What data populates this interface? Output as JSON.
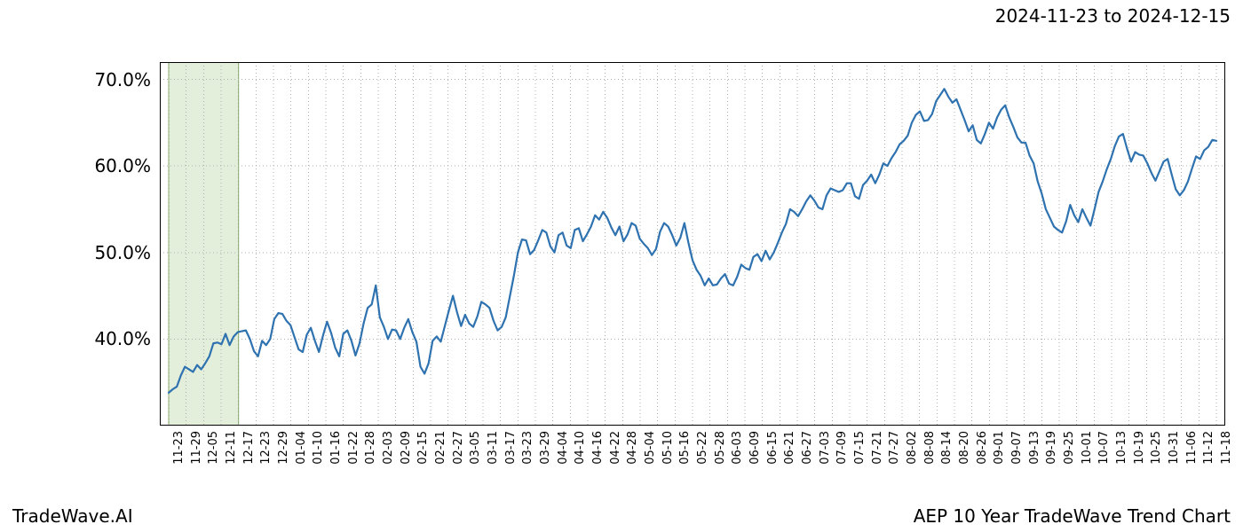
{
  "header": {
    "date_range": "2024-11-23 to 2024-12-15"
  },
  "footer": {
    "left": "TradeWave.AI",
    "right": "AEP 10 Year TradeWave Trend Chart"
  },
  "chart": {
    "type": "line",
    "background_color": "#ffffff",
    "grid_color": "#b0b0b0",
    "grid_dash": "1 3",
    "border_color": "#000000",
    "series_color": "#2f72b0",
    "series_line_width": 2.2,
    "highlight_band": {
      "fill": "#e3efdb",
      "stroke": "#78a65a",
      "x_start_label": "11-23",
      "x_end_label": "12-17"
    },
    "ylim": [
      30,
      72
    ],
    "ytick_values": [
      40,
      50,
      60,
      70
    ],
    "ytick_labels": [
      "40.0%",
      "50.0%",
      "60.0%",
      "70.0%"
    ],
    "label_fontsize": 20,
    "xtick_fontsize": 13,
    "xlabels": [
      "11-23",
      "11-29",
      "12-05",
      "12-11",
      "12-17",
      "12-23",
      "12-29",
      "01-04",
      "01-10",
      "01-16",
      "01-22",
      "01-28",
      "02-03",
      "02-09",
      "02-15",
      "02-21",
      "02-27",
      "03-05",
      "03-11",
      "03-17",
      "03-23",
      "03-29",
      "04-04",
      "04-10",
      "04-16",
      "04-22",
      "04-28",
      "05-04",
      "05-10",
      "05-16",
      "05-22",
      "05-28",
      "06-03",
      "06-09",
      "06-15",
      "06-21",
      "06-27",
      "07-03",
      "07-09",
      "07-15",
      "07-21",
      "07-27",
      "08-02",
      "08-08",
      "08-14",
      "08-20",
      "08-26",
      "09-01",
      "09-07",
      "09-13",
      "09-19",
      "09-25",
      "10-01",
      "10-07",
      "10-13",
      "10-19",
      "10-25",
      "10-31",
      "11-06",
      "11-12",
      "11-18"
    ],
    "values": [
      33.8,
      34.2,
      34.5,
      35.8,
      36.8,
      36.5,
      36.2,
      37.0,
      36.5,
      37.2,
      38.0,
      39.5,
      39.6,
      39.4,
      40.6,
      39.3,
      40.3,
      40.8,
      40.9,
      41.0,
      40.0,
      38.6,
      38.0,
      39.8,
      39.3,
      40.0,
      42.3,
      43.0,
      42.9,
      42.1,
      41.6,
      40.2,
      38.8,
      38.5,
      40.5,
      41.3,
      39.8,
      38.5,
      40.4,
      42.0,
      40.7,
      39.0,
      38.0,
      40.6,
      41.0,
      39.8,
      38.1,
      39.5,
      41.8,
      43.6,
      44.0,
      46.2,
      42.5,
      41.4,
      40.0,
      41.1,
      41.0,
      40.0,
      41.3,
      42.3,
      40.8,
      39.7,
      36.8,
      36.0,
      37.2,
      39.8,
      40.3,
      39.7,
      41.5,
      43.3,
      45.0,
      43.1,
      41.5,
      42.8,
      41.8,
      41.4,
      42.6,
      44.3,
      44.0,
      43.6,
      42.1,
      41.0,
      41.4,
      42.5,
      44.9,
      47.3,
      50.0,
      51.5,
      51.4,
      49.8,
      50.3,
      51.4,
      52.6,
      52.3,
      50.7,
      50.0,
      52.0,
      52.3,
      50.8,
      50.5,
      52.6,
      52.8,
      51.3,
      52.1,
      53.0,
      54.3,
      53.8,
      54.7,
      54.0,
      52.9,
      52.0,
      53.0,
      51.3,
      52.1,
      53.4,
      53.1,
      51.6,
      51.0,
      50.5,
      49.7,
      50.4,
      52.4,
      53.4,
      53.0,
      52.0,
      50.8,
      51.7,
      53.4,
      51.1,
      49.1,
      48.0,
      47.3,
      46.2,
      47.0,
      46.2,
      46.3,
      47.0,
      47.5,
      46.4,
      46.2,
      47.2,
      48.6,
      48.2,
      48.0,
      49.5,
      49.8,
      49.0,
      50.2,
      49.2,
      50.0,
      51.1,
      52.3,
      53.3,
      55.0,
      54.7,
      54.2,
      55.0,
      55.9,
      56.6,
      56.0,
      55.2,
      55.0,
      56.6,
      57.4,
      57.2,
      57.0,
      57.2,
      58.0,
      58.0,
      56.5,
      56.2,
      57.8,
      58.3,
      59.0,
      58.0,
      59.0,
      60.3,
      60.0,
      60.9,
      61.6,
      62.5,
      62.9,
      63.5,
      65.0,
      65.9,
      66.3,
      65.2,
      65.3,
      66.0,
      67.5,
      68.2,
      68.9,
      68.0,
      67.3,
      67.7,
      66.5,
      65.3,
      64.0,
      64.7,
      63.0,
      62.6,
      63.7,
      65.0,
      64.3,
      65.6,
      66.5,
      67.0,
      65.6,
      64.5,
      63.3,
      62.7,
      62.7,
      61.2,
      60.3,
      58.2,
      56.8,
      55.0,
      54.0,
      53.0,
      52.6,
      52.3,
      53.6,
      55.5,
      54.3,
      53.5,
      55.0,
      54.0,
      53.1,
      55.0,
      57.0,
      58.2,
      59.6,
      60.8,
      62.3,
      63.4,
      63.7,
      62.0,
      60.5,
      61.6,
      61.3,
      61.2,
      60.3,
      59.2,
      58.3,
      59.4,
      60.5,
      60.8,
      59.0,
      57.3,
      56.6,
      57.2,
      58.2,
      59.7,
      61.1,
      60.8,
      61.8,
      62.2,
      63.0,
      62.9
    ]
  }
}
